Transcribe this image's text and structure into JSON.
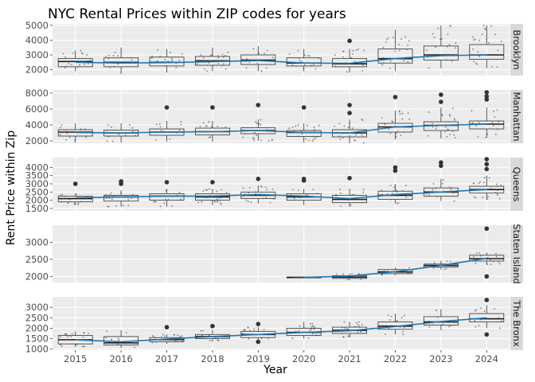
{
  "chart_data": {
    "type": "box",
    "title": "NYC Rental Prices within ZIP codes for years",
    "xlabel": "Year",
    "ylabel": "Rent Price within Zip",
    "categories": [
      "2015",
      "2016",
      "2017",
      "2018",
      "2019",
      "2020",
      "2021",
      "2022",
      "2023",
      "2024"
    ],
    "trend_color": "#1f77b4",
    "panel_background": "#ebebeb",
    "strip_background": "#d9d9d9",
    "grid": true,
    "facets": [
      {
        "name": "Brooklyn",
        "ylim": [
          1600,
          5100
        ],
        "yticks": [
          2000,
          3000,
          4000,
          5000
        ],
        "boxes": [
          {
            "year": "2015",
            "q1": 2200,
            "median": 2550,
            "q3": 2750,
            "whisker_low": 1900,
            "whisker_high": 3300,
            "outliers": []
          },
          {
            "year": "2016",
            "q1": 2200,
            "median": 2500,
            "q3": 2800,
            "whisker_low": 1700,
            "whisker_high": 3500,
            "outliers": []
          },
          {
            "year": "2017",
            "q1": 2250,
            "median": 2500,
            "q3": 2850,
            "whisker_low": 1800,
            "whisker_high": 3400,
            "outliers": []
          },
          {
            "year": "2018",
            "q1": 2300,
            "median": 2600,
            "q3": 2900,
            "whisker_low": 1900,
            "whisker_high": 3500,
            "outliers": []
          },
          {
            "year": "2019",
            "q1": 2350,
            "median": 2650,
            "q3": 3000,
            "whisker_low": 1900,
            "whisker_high": 3600,
            "outliers": []
          },
          {
            "year": "2020",
            "q1": 2250,
            "median": 2450,
            "q3": 2800,
            "whisker_low": 1900,
            "whisker_high": 3400,
            "outliers": []
          },
          {
            "year": "2021",
            "q1": 2200,
            "median": 2400,
            "q3": 2750,
            "whisker_low": 1800,
            "whisker_high": 3400,
            "outliers": [
              3950
            ]
          },
          {
            "year": "2022",
            "q1": 2450,
            "median": 2750,
            "q3": 3400,
            "whisker_low": 1900,
            "whisker_high": 4700,
            "outliers": []
          },
          {
            "year": "2023",
            "q1": 2650,
            "median": 3000,
            "q3": 3600,
            "whisker_low": 2100,
            "whisker_high": 5000,
            "outliers": []
          },
          {
            "year": "2024",
            "q1": 2700,
            "median": 3000,
            "q3": 3700,
            "whisker_low": 2100,
            "whisker_high": 5000,
            "outliers": []
          }
        ],
        "trend": [
          2500,
          2450,
          2480,
          2550,
          2620,
          2450,
          2430,
          2750,
          2950,
          3000
        ]
      },
      {
        "name": "Manhattan",
        "ylim": [
          1700,
          8400
        ],
        "yticks": [
          2000,
          4000,
          6000,
          8000
        ],
        "boxes": [
          {
            "year": "2015",
            "q1": 2600,
            "median": 3100,
            "q3": 3400,
            "whisker_low": 1800,
            "whisker_high": 4200,
            "outliers": []
          },
          {
            "year": "2016",
            "q1": 2600,
            "median": 3000,
            "q3": 3350,
            "whisker_low": 1800,
            "whisker_high": 4200,
            "outliers": []
          },
          {
            "year": "2017",
            "q1": 2700,
            "median": 3100,
            "q3": 3500,
            "whisker_low": 1900,
            "whisker_high": 4500,
            "outliers": [
              6200
            ]
          },
          {
            "year": "2018",
            "q1": 2750,
            "median": 3150,
            "q3": 3600,
            "whisker_low": 1900,
            "whisker_high": 4500,
            "outliers": [
              6200
            ]
          },
          {
            "year": "2019",
            "q1": 2900,
            "median": 3300,
            "q3": 3650,
            "whisker_low": 2000,
            "whisker_high": 4700,
            "outliers": [
              6500
            ]
          },
          {
            "year": "2020",
            "q1": 2550,
            "median": 3050,
            "q3": 3300,
            "whisker_low": 1800,
            "whisker_high": 4200,
            "outliers": [
              6200
            ]
          },
          {
            "year": "2021",
            "q1": 2500,
            "median": 3000,
            "q3": 3400,
            "whisker_low": 1700,
            "whisker_high": 4700,
            "outliers": [
              5500,
              6500
            ]
          },
          {
            "year": "2022",
            "q1": 3100,
            "median": 3750,
            "q3": 4200,
            "whisker_low": 2200,
            "whisker_high": 5800,
            "outliers": [
              7500
            ]
          },
          {
            "year": "2023",
            "q1": 3300,
            "median": 3950,
            "q3": 4400,
            "whisker_low": 2300,
            "whisker_high": 6200,
            "outliers": [
              6900,
              7800
            ]
          },
          {
            "year": "2024",
            "q1": 3500,
            "median": 4100,
            "q3": 4500,
            "whisker_low": 2400,
            "whisker_high": 6200,
            "outliers": [
              7200,
              7600,
              8100
            ]
          }
        ],
        "trend": [
          3050,
          3000,
          3100,
          3150,
          3300,
          3050,
          3000,
          3750,
          3950,
          4100
        ]
      },
      {
        "name": "Queens",
        "ylim": [
          1350,
          4600
        ],
        "yticks": [
          1500,
          2000,
          2500,
          3000,
          3500,
          4000
        ],
        "boxes": [
          {
            "year": "2015",
            "q1": 1900,
            "median": 2100,
            "q3": 2250,
            "whisker_low": 1700,
            "whisker_high": 2400,
            "outliers": [
              3000
            ]
          },
          {
            "year": "2016",
            "q1": 1950,
            "median": 2200,
            "q3": 2300,
            "whisker_low": 1600,
            "whisker_high": 2600,
            "outliers": [
              3000,
              3150
            ]
          },
          {
            "year": "2017",
            "q1": 2000,
            "median": 2250,
            "q3": 2400,
            "whisker_low": 1600,
            "whisker_high": 2700,
            "outliers": [
              3100
            ]
          },
          {
            "year": "2018",
            "q1": 2000,
            "median": 2200,
            "q3": 2400,
            "whisker_low": 1700,
            "whisker_high": 2700,
            "outliers": [
              3100
            ]
          },
          {
            "year": "2019",
            "q1": 2100,
            "median": 2300,
            "q3": 2500,
            "whisker_low": 1800,
            "whisker_high": 2900,
            "outliers": [
              3300
            ]
          },
          {
            "year": "2020",
            "q1": 2000,
            "median": 2200,
            "q3": 2400,
            "whisker_low": 1700,
            "whisker_high": 2700,
            "outliers": [
              3200,
              3300
            ]
          },
          {
            "year": "2021",
            "q1": 1850,
            "median": 2050,
            "q3": 2300,
            "whisker_low": 1600,
            "whisker_high": 2700,
            "outliers": [
              3350
            ]
          },
          {
            "year": "2022",
            "q1": 2050,
            "median": 2300,
            "q3": 2550,
            "whisker_low": 1800,
            "whisker_high": 3000,
            "outliers": [
              3800,
              4000
            ]
          },
          {
            "year": "2023",
            "q1": 2250,
            "median": 2500,
            "q3": 2750,
            "whisker_low": 1950,
            "whisker_high": 3300,
            "outliers": [
              4100,
              4300
            ]
          },
          {
            "year": "2024",
            "q1": 2450,
            "median": 2650,
            "q3": 2850,
            "whisker_low": 2050,
            "whisker_high": 3500,
            "outliers": [
              3900,
              4200,
              4500
            ]
          }
        ],
        "trend": [
          2150,
          2200,
          2250,
          2250,
          2350,
          2250,
          2100,
          2350,
          2500,
          2650
        ]
      },
      {
        "name": "Staten Island",
        "ylim": [
          1820,
          3500
        ],
        "yticks": [
          2000,
          2500,
          3000
        ],
        "boxes": [
          {
            "year": "2020",
            "q1": 1960,
            "median": 1970,
            "q3": 1980,
            "whisker_low": 1960,
            "whisker_high": 1980,
            "outliers": []
          },
          {
            "year": "2021",
            "q1": 1940,
            "median": 1980,
            "q3": 2020,
            "whisker_low": 1880,
            "whisker_high": 2080,
            "outliers": []
          },
          {
            "year": "2022",
            "q1": 2080,
            "median": 2130,
            "q3": 2200,
            "whisker_low": 2030,
            "whisker_high": 2260,
            "outliers": []
          },
          {
            "year": "2023",
            "q1": 2270,
            "median": 2320,
            "q3": 2360,
            "whisker_low": 2200,
            "whisker_high": 2460,
            "outliers": []
          },
          {
            "year": "2024",
            "q1": 2450,
            "median": 2520,
            "q3": 2620,
            "whisker_low": 2350,
            "whisker_high": 2700,
            "outliers": [
              3400,
              2000
            ]
          }
        ],
        "trend": [
          null,
          null,
          null,
          null,
          null,
          1970,
          2010,
          2140,
          2320,
          2530
        ]
      },
      {
        "name": "The Bronx",
        "ylim": [
          950,
          3500
        ],
        "yticks": [
          1000,
          1500,
          2000,
          2500,
          3000
        ],
        "boxes": [
          {
            "year": "2015",
            "q1": 1250,
            "median": 1450,
            "q3": 1650,
            "whisker_low": 1100,
            "whisker_high": 1850,
            "outliers": []
          },
          {
            "year": "2016",
            "q1": 1200,
            "median": 1300,
            "q3": 1600,
            "whisker_low": 1050,
            "whisker_high": 1900,
            "outliers": []
          },
          {
            "year": "2017",
            "q1": 1350,
            "median": 1450,
            "q3": 1550,
            "whisker_low": 1250,
            "whisker_high": 1700,
            "outliers": [
              2050
            ]
          },
          {
            "year": "2018",
            "q1": 1500,
            "median": 1600,
            "q3": 1700,
            "whisker_low": 1350,
            "whisker_high": 1900,
            "outliers": [
              2100
            ]
          },
          {
            "year": "2019",
            "q1": 1550,
            "median": 1700,
            "q3": 1850,
            "whisker_low": 1450,
            "whisker_high": 2050,
            "outliers": [
              1350,
              2200
            ]
          },
          {
            "year": "2020",
            "q1": 1650,
            "median": 1800,
            "q3": 2000,
            "whisker_low": 1500,
            "whisker_high": 2300,
            "outliers": []
          },
          {
            "year": "2021",
            "q1": 1750,
            "median": 1900,
            "q3": 2050,
            "whisker_low": 1550,
            "whisker_high": 2300,
            "outliers": []
          },
          {
            "year": "2022",
            "q1": 1950,
            "median": 2100,
            "q3": 2300,
            "whisker_low": 1700,
            "whisker_high": 2700,
            "outliers": []
          },
          {
            "year": "2023",
            "q1": 2150,
            "median": 2300,
            "q3": 2550,
            "whisker_low": 1900,
            "whisker_high": 2900,
            "outliers": []
          },
          {
            "year": "2024",
            "q1": 2300,
            "median": 2450,
            "q3": 2700,
            "whisker_low": 2000,
            "whisker_high": 3100,
            "outliers": [
              1700,
              3350
            ]
          }
        ],
        "trend": [
          1450,
          1350,
          1480,
          1600,
          1700,
          1800,
          1880,
          2080,
          2320,
          2500
        ]
      }
    ]
  }
}
